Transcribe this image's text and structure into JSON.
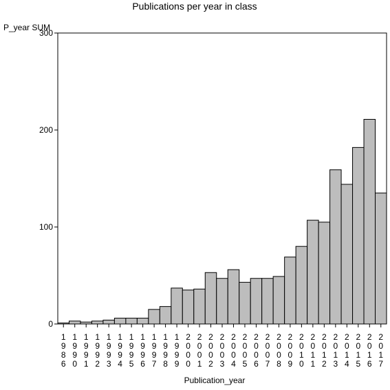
{
  "chart_data": {
    "type": "bar",
    "title": "Publications per year in class",
    "xlabel": "Publication_year",
    "ylabel": "P_year SUM",
    "ylim": [
      0,
      300
    ],
    "yticks": [
      0,
      100,
      200,
      300
    ],
    "categories": [
      "1986",
      "1990",
      "1991",
      "1992",
      "1993",
      "1994",
      "1995",
      "1996",
      "1997",
      "1998",
      "1999",
      "2000",
      "2001",
      "2002",
      "2003",
      "2004",
      "2005",
      "2006",
      "2007",
      "2008",
      "2009",
      "2010",
      "2011",
      "2012",
      "2013",
      "2014",
      "2015",
      "2016",
      "2017"
    ],
    "values": [
      1,
      3,
      2,
      3,
      4,
      6,
      6,
      6,
      15,
      18,
      37,
      35,
      36,
      53,
      47,
      56,
      43,
      47,
      47,
      49,
      69,
      80,
      107,
      105,
      159,
      144,
      182,
      211,
      135
    ],
    "bar_color": "#bdbdbd",
    "bar_edge_color": "#000000",
    "grid": false
  }
}
